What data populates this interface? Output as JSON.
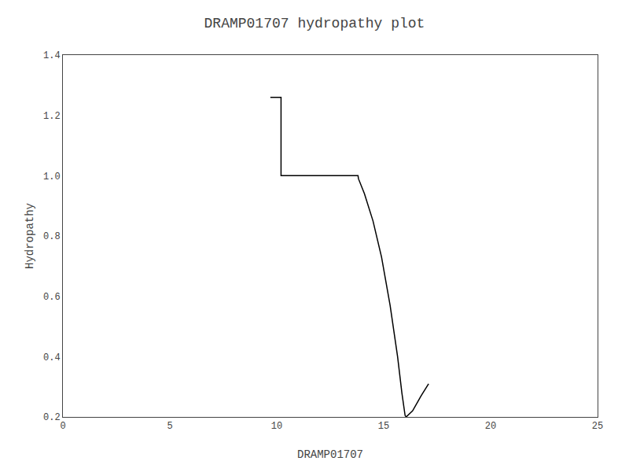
{
  "chart_data": {
    "type": "line",
    "title": "DRAMP01707 hydropathy plot",
    "xlabel": "DRAMP01707",
    "ylabel": "Hydropathy",
    "x": [
      9.7,
      10.2,
      10.2,
      11.2,
      13.8,
      13.82,
      14.1,
      14.5,
      14.9,
      15.3,
      15.65,
      15.85,
      16.0,
      16.05,
      16.35,
      16.75,
      17.1
    ],
    "values": [
      1.26,
      1.26,
      1.0,
      1.0,
      1.0,
      0.99,
      0.94,
      0.85,
      0.73,
      0.57,
      0.4,
      0.28,
      0.205,
      0.2,
      0.22,
      0.27,
      0.31
    ],
    "color": "#000000",
    "xlim": [
      0,
      25
    ],
    "ylim": [
      0.2,
      1.4
    ],
    "xticks": [
      0,
      5,
      10,
      15,
      20,
      25
    ],
    "yticks": [
      0.2,
      0.4,
      0.6,
      0.8,
      {
        "value": 1.0,
        "label": "1.0"
      },
      1.2,
      1.4
    ],
    "grid": false
  }
}
